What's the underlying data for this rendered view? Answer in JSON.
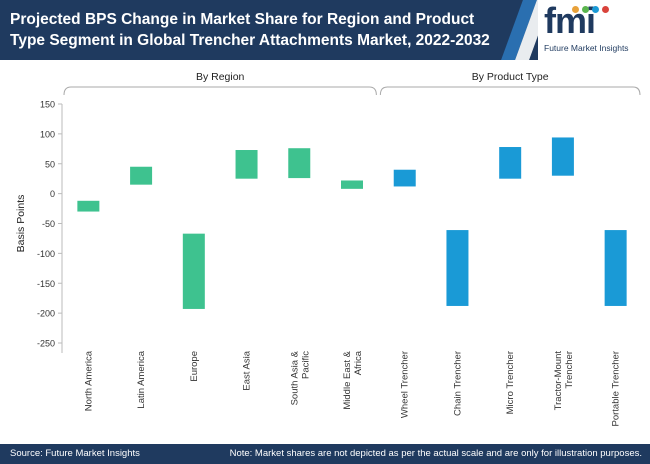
{
  "header": {
    "title": "Projected BPS Change in Market Share for Region and Product Type Segment in Global Trencher Attachments Market, 2022-2032"
  },
  "logo": {
    "text": "fmi",
    "subtitle": "Future Market Insights"
  },
  "footer": {
    "source": "Source: Future Market Insights",
    "note": "Note: Market shares are not depicted as per the actual scale and are only for illustration purposes."
  },
  "colors": {
    "header_bg": "#1f3a5f",
    "region_bar": "#3ec28f",
    "product_bar": "#1a9ad6"
  },
  "chart_data": {
    "type": "bar",
    "subtype": "floating",
    "ylabel": "Basis Points",
    "ylim": [
      -250,
      150
    ],
    "yticks": [
      150,
      100,
      50,
      0,
      -50,
      -100,
      -150,
      -200,
      -250
    ],
    "groups": [
      {
        "label": "By Region",
        "color": "#3ec28f",
        "bars": [
          {
            "category": "North America",
            "start": -12,
            "end": -30
          },
          {
            "category": "Latin America",
            "start": 15,
            "end": 45
          },
          {
            "category": "Europe",
            "start": -67,
            "end": -193
          },
          {
            "category": "East Asia",
            "start": 25,
            "end": 73
          },
          {
            "category": "South Asia & Pacific",
            "start": 26,
            "end": 76
          },
          {
            "category": "Middle East & Africa",
            "start": 8,
            "end": 22
          }
        ]
      },
      {
        "label": "By Product Type",
        "color": "#1a9ad6",
        "bars": [
          {
            "category": "Wheel Trencher",
            "start": 12,
            "end": 40
          },
          {
            "category": "Chain Trencher",
            "start": -61,
            "end": -188
          },
          {
            "category": "Micro Trencher",
            "start": 25,
            "end": 78
          },
          {
            "category": "Tractor-Mount Trencher",
            "start": 30,
            "end": 94
          },
          {
            "category": "Portable Trencher",
            "start": -61,
            "end": -188
          }
        ]
      }
    ]
  }
}
